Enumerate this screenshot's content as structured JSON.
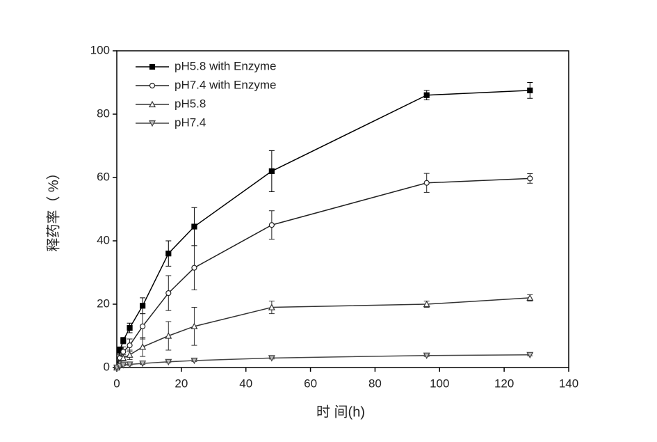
{
  "chart_data": {
    "type": "line",
    "x_label": "时 间(h)",
    "y_label": "释药率（ %）",
    "x": [
      0,
      1,
      2,
      4,
      8,
      16,
      24,
      48,
      96,
      128
    ],
    "series": [
      {
        "name": "pH5.8 with  Enzyme",
        "color": "#000000",
        "marker": "square",
        "values": [
          0,
          5.5,
          8.5,
          12.5,
          19.5,
          36,
          44.5,
          62,
          86,
          87.5
        ],
        "errors": [
          0,
          1,
          1,
          1.5,
          2.5,
          4,
          6,
          6.5,
          1.5,
          2.5
        ]
      },
      {
        "name": "pH7.4 with  Enzyme",
        "color": "#222222",
        "marker": "circle",
        "values": [
          0,
          3,
          5,
          7,
          13,
          23.5,
          31.5,
          45,
          58.3,
          59.7
        ],
        "errors": [
          0,
          1,
          1.5,
          2,
          4,
          5.5,
          7,
          4.5,
          3,
          1.5
        ]
      },
      {
        "name": "pH5.8",
        "color": "#333333",
        "marker": "triangle-up",
        "values": [
          0,
          1.5,
          3,
          4,
          6.5,
          10,
          13,
          19,
          20,
          22
        ],
        "errors": [
          0,
          0.5,
          1,
          1.5,
          3,
          4.5,
          6,
          2,
          1,
          1
        ]
      },
      {
        "name": "pH7.4",
        "color": "#444444",
        "marker": "triangle-down",
        "values": [
          0,
          0.5,
          0.8,
          1,
          1.3,
          1.8,
          2.2,
          3,
          3.8,
          4
        ],
        "errors": [
          0,
          0.2,
          0.2,
          0.3,
          0.3,
          0.3,
          0.3,
          0.3,
          0.3,
          0.3
        ]
      }
    ],
    "xlim": [
      0,
      140
    ],
    "xticks": [
      0,
      20,
      40,
      60,
      80,
      100,
      120,
      140
    ],
    "ylim": [
      0,
      100
    ],
    "yticks": [
      0,
      20,
      40,
      60,
      80,
      100
    ],
    "legend": "upper-left"
  }
}
